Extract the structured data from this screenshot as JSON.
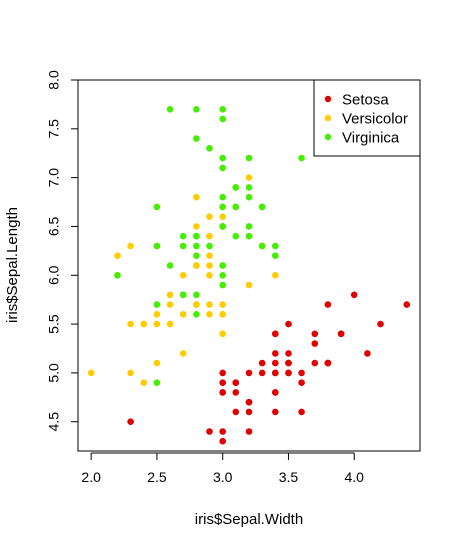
{
  "chart_data": {
    "type": "scatter",
    "xlabel": "iris$Sepal.Width",
    "ylabel": "iris$Sepal.Length",
    "xlim": [
      1.9,
      4.5
    ],
    "ylim": [
      4.2,
      8.0
    ],
    "xticks": [
      2.0,
      2.5,
      3.0,
      3.5,
      4.0
    ],
    "xtick_labels": [
      "2.0",
      "2.5",
      "3.0",
      "3.5",
      "4.0"
    ],
    "yticks": [
      4.5,
      5.0,
      5.5,
      6.0,
      6.5,
      7.0,
      7.5,
      8.0
    ],
    "ytick_labels": [
      "4.5",
      "5.0",
      "5.5",
      "6.0",
      "6.5",
      "7.0",
      "7.5",
      "8.0"
    ],
    "grid": false,
    "legend_position": "top-right",
    "series": [
      {
        "name": "Setosa",
        "color": "#e00000",
        "points": [
          [
            3.5,
            5.1
          ],
          [
            3.0,
            4.9
          ],
          [
            3.2,
            4.7
          ],
          [
            3.1,
            4.6
          ],
          [
            3.6,
            5.0
          ],
          [
            3.9,
            5.4
          ],
          [
            3.4,
            4.6
          ],
          [
            3.4,
            5.0
          ],
          [
            2.9,
            4.4
          ],
          [
            3.1,
            4.9
          ],
          [
            3.7,
            5.4
          ],
          [
            3.4,
            4.8
          ],
          [
            3.0,
            4.8
          ],
          [
            3.0,
            4.3
          ],
          [
            4.0,
            5.8
          ],
          [
            4.4,
            5.7
          ],
          [
            3.9,
            5.4
          ],
          [
            3.5,
            5.1
          ],
          [
            3.8,
            5.7
          ],
          [
            3.8,
            5.1
          ],
          [
            3.4,
            5.4
          ],
          [
            3.7,
            5.1
          ],
          [
            3.6,
            4.6
          ],
          [
            3.3,
            5.1
          ],
          [
            3.4,
            4.8
          ],
          [
            3.0,
            5.0
          ],
          [
            3.4,
            5.0
          ],
          [
            3.5,
            5.2
          ],
          [
            3.4,
            5.2
          ],
          [
            3.2,
            4.7
          ],
          [
            3.1,
            4.8
          ],
          [
            3.4,
            5.4
          ],
          [
            4.1,
            5.2
          ],
          [
            4.2,
            5.5
          ],
          [
            3.1,
            4.9
          ],
          [
            3.2,
            5.0
          ],
          [
            3.5,
            5.5
          ],
          [
            3.6,
            4.9
          ],
          [
            3.0,
            4.4
          ],
          [
            3.4,
            5.1
          ],
          [
            3.5,
            5.0
          ],
          [
            2.3,
            4.5
          ],
          [
            3.2,
            4.4
          ],
          [
            3.5,
            5.0
          ],
          [
            3.8,
            5.1
          ],
          [
            3.0,
            4.8
          ],
          [
            3.8,
            5.1
          ],
          [
            3.2,
            4.6
          ],
          [
            3.7,
            5.3
          ],
          [
            3.3,
            5.0
          ]
        ]
      },
      {
        "name": "Versicolor",
        "color": "#ffcc00",
        "points": [
          [
            3.2,
            7.0
          ],
          [
            3.2,
            6.4
          ],
          [
            3.1,
            6.9
          ],
          [
            2.3,
            5.5
          ],
          [
            2.8,
            6.5
          ],
          [
            2.8,
            5.7
          ],
          [
            3.3,
            6.3
          ],
          [
            2.4,
            4.9
          ],
          [
            2.9,
            6.6
          ],
          [
            2.7,
            5.2
          ],
          [
            2.0,
            5.0
          ],
          [
            3.0,
            5.9
          ],
          [
            2.2,
            6.0
          ],
          [
            2.9,
            6.1
          ],
          [
            2.9,
            5.6
          ],
          [
            3.1,
            6.7
          ],
          [
            3.0,
            5.6
          ],
          [
            2.7,
            5.8
          ],
          [
            2.2,
            6.2
          ],
          [
            2.5,
            5.6
          ],
          [
            3.2,
            5.9
          ],
          [
            2.8,
            6.1
          ],
          [
            2.5,
            6.3
          ],
          [
            2.8,
            6.1
          ],
          [
            2.9,
            6.4
          ],
          [
            3.0,
            6.6
          ],
          [
            2.8,
            6.8
          ],
          [
            3.0,
            6.7
          ],
          [
            2.9,
            6.0
          ],
          [
            2.6,
            5.7
          ],
          [
            2.4,
            5.5
          ],
          [
            2.4,
            5.5
          ],
          [
            2.7,
            5.8
          ],
          [
            2.7,
            6.0
          ],
          [
            3.0,
            5.4
          ],
          [
            3.4,
            6.0
          ],
          [
            3.1,
            6.7
          ],
          [
            2.3,
            6.3
          ],
          [
            3.0,
            5.6
          ],
          [
            2.5,
            5.5
          ],
          [
            2.6,
            5.5
          ],
          [
            3.0,
            6.1
          ],
          [
            2.6,
            5.8
          ],
          [
            2.3,
            5.0
          ],
          [
            2.7,
            5.6
          ],
          [
            3.0,
            5.7
          ],
          [
            2.9,
            5.7
          ],
          [
            2.9,
            6.2
          ],
          [
            2.5,
            5.1
          ],
          [
            2.8,
            5.7
          ]
        ]
      },
      {
        "name": "Virginica",
        "color": "#44ee00",
        "points": [
          [
            3.3,
            6.3
          ],
          [
            2.7,
            5.8
          ],
          [
            3.0,
            7.1
          ],
          [
            2.9,
            6.3
          ],
          [
            3.0,
            6.5
          ],
          [
            3.0,
            7.6
          ],
          [
            2.5,
            4.9
          ],
          [
            2.9,
            7.3
          ],
          [
            2.5,
            6.7
          ],
          [
            3.6,
            7.2
          ],
          [
            3.2,
            6.5
          ],
          [
            2.7,
            6.4
          ],
          [
            3.0,
            6.8
          ],
          [
            2.5,
            5.7
          ],
          [
            2.8,
            5.8
          ],
          [
            3.2,
            6.4
          ],
          [
            3.0,
            6.5
          ],
          [
            3.8,
            7.7
          ],
          [
            2.6,
            7.7
          ],
          [
            2.2,
            6.0
          ],
          [
            3.2,
            6.9
          ],
          [
            2.8,
            5.6
          ],
          [
            2.8,
            7.7
          ],
          [
            2.7,
            6.3
          ],
          [
            3.3,
            6.7
          ],
          [
            3.2,
            7.2
          ],
          [
            2.8,
            6.2
          ],
          [
            3.0,
            6.1
          ],
          [
            2.8,
            6.4
          ],
          [
            3.0,
            7.2
          ],
          [
            2.8,
            7.4
          ],
          [
            3.8,
            7.9
          ],
          [
            2.8,
            6.4
          ],
          [
            2.8,
            6.3
          ],
          [
            2.6,
            6.1
          ],
          [
            3.0,
            7.7
          ],
          [
            3.4,
            6.3
          ],
          [
            3.1,
            6.4
          ],
          [
            3.0,
            6.0
          ],
          [
            3.1,
            6.9
          ],
          [
            3.1,
            6.7
          ],
          [
            3.1,
            6.9
          ],
          [
            2.7,
            5.8
          ],
          [
            3.2,
            6.8
          ],
          [
            3.3,
            6.7
          ],
          [
            3.0,
            6.7
          ],
          [
            2.5,
            6.3
          ],
          [
            3.0,
            6.5
          ],
          [
            3.4,
            6.2
          ],
          [
            3.0,
            5.9
          ]
        ]
      }
    ]
  }
}
